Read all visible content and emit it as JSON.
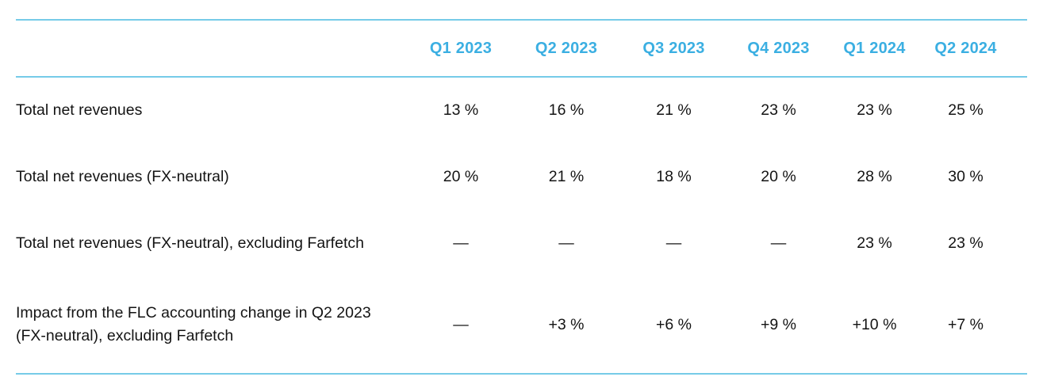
{
  "colors": {
    "header_text": "#3bafe2",
    "rule_line": "#76cbe8",
    "body_text": "#141414",
    "background": "#ffffff"
  },
  "chart_data": {
    "type": "table",
    "columns": [
      "Q1 2023",
      "Q2 2023",
      "Q3 2023",
      "Q4 2023",
      "Q1 2024",
      "Q2 2024"
    ],
    "rows": [
      {
        "label": "Total net revenues",
        "values": [
          "13 %",
          "16 %",
          "21 %",
          "23 %",
          "23 %",
          "25 %"
        ]
      },
      {
        "label": "Total net revenues (FX-neutral)",
        "values": [
          "20 %",
          "21 %",
          "18 %",
          "20 %",
          "28 %",
          "30 %"
        ]
      },
      {
        "label": "Total net revenues (FX-neutral), excluding Farfetch",
        "values": [
          "—",
          "—",
          "—",
          "—",
          "23 %",
          "23 %"
        ]
      },
      {
        "label": "Impact from the FLC accounting change in Q2 2023 (FX-neutral), excluding Farfetch",
        "values": [
          "—",
          "+3 %",
          "+6 %",
          "+9 %",
          "+10 %",
          "+7 %"
        ]
      }
    ]
  }
}
